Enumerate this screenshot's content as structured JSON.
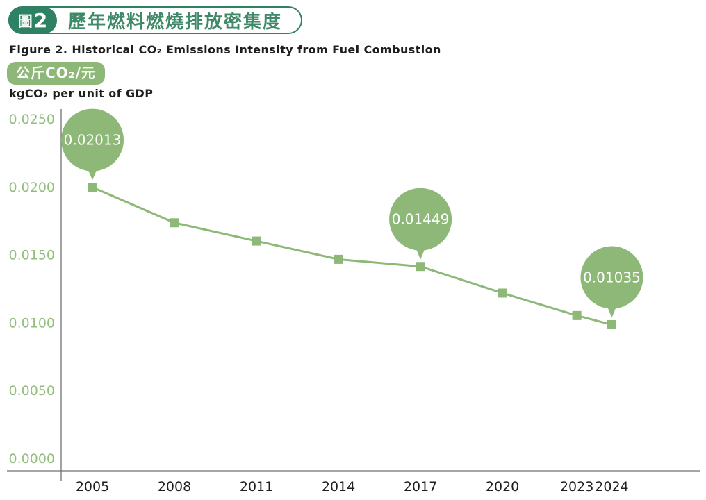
{
  "header": {
    "figure_badge_prefix": "圖",
    "figure_badge_number": "2",
    "title_zh": "歷年燃料燃燒排放密集度",
    "title_en": "Figure 2. Historical CO₂ Emissions Intensity from Fuel Combustion",
    "unit_badge_zh": "公斤CO₂/元",
    "unit_en": "kgCO₂ per unit of GDP"
  },
  "colors": {
    "header_green": "#2F8164",
    "series_green": "#8DB877",
    "tick_label_green": "#94BE7D",
    "axis_gray": "#6F6F6F",
    "text_dark": "#1F1F1F",
    "bubble_text": "#FFFFFF"
  },
  "chart_data": {
    "type": "line",
    "title": "歷年燃料燃燒排放密集度",
    "subtitle": "Figure 2. Historical CO₂ Emissions Intensity from Fuel Combustion",
    "ylabel": "kgCO₂ per unit of GDP",
    "ylabel_zh": "公斤CO₂/元",
    "x": [
      2005,
      2008,
      2011,
      2014,
      2017,
      2020,
      2023,
      2024
    ],
    "x_tick_labels": [
      "2005",
      "2008",
      "2011",
      "2014",
      "2017",
      "2020",
      "2023",
      "2024"
    ],
    "values": [
      0.02013,
      0.0176,
      0.0163,
      0.015,
      0.01449,
      0.0126,
      0.011,
      0.01035
    ],
    "y_ticks": [
      0.0,
      0.005,
      0.01,
      0.015,
      0.02,
      0.025
    ],
    "y_tick_labels": [
      "0.0000",
      "0.0050",
      "0.0100",
      "0.0150",
      "0.0200",
      "0.0250"
    ],
    "ylim": [
      0.0,
      0.025
    ],
    "grid": false,
    "legend": false,
    "marker": "square",
    "annotations": [
      {
        "x": 2005,
        "label": "0.02013"
      },
      {
        "x": 2017,
        "label": "0.01449"
      },
      {
        "x": 2024,
        "label": "0.01035"
      }
    ]
  }
}
